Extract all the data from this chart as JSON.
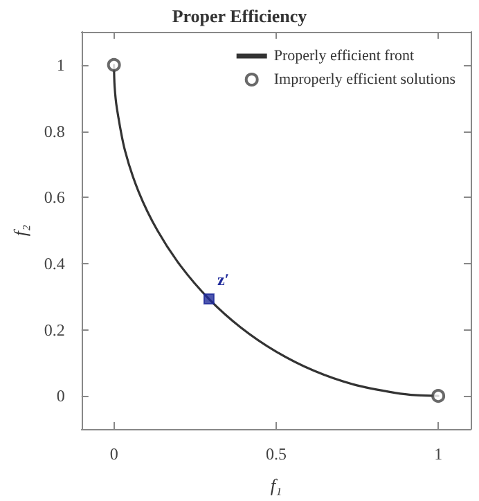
{
  "chart_data": {
    "type": "line",
    "title": "Proper Efficiency",
    "xlabel": "f₁",
    "ylabel": "f₂",
    "xlim": [
      -0.1,
      1.1
    ],
    "xticks": [
      0,
      0.5,
      1
    ],
    "ylim": [
      -0.1,
      1.1
    ],
    "yticks": [
      0,
      0.2,
      0.4,
      0.6,
      0.8,
      1
    ],
    "grid": false,
    "legend": "top right",
    "annotations": [
      {
        "text": "z′",
        "x": 0.293,
        "y": 0.293
      }
    ],
    "series": [
      {
        "name": "Properly efficient front",
        "color": "#333333",
        "marker": "none",
        "line_style": "solid",
        "x": [
          0,
          0.002,
          0.009,
          0.034,
          0.076,
          0.134,
          0.207,
          0.293,
          0.391,
          0.5,
          0.617,
          0.741,
          0.869,
          0.935,
          1
        ],
        "values": [
          1,
          0.935,
          0.869,
          0.741,
          0.617,
          0.5,
          0.391,
          0.293,
          0.207,
          0.134,
          0.076,
          0.034,
          0.009,
          0.002,
          0
        ]
      },
      {
        "name": "Improperly efficient solutions",
        "type": "scatter",
        "color": "#444444",
        "marker": "circle",
        "x": [
          0,
          1
        ],
        "values": [
          1,
          0
        ]
      },
      {
        "type": "scatter",
        "color": "#1f2a9a",
        "marker": "square",
        "x": [
          0.293
        ],
        "values": [
          0.293
        ]
      }
    ]
  }
}
